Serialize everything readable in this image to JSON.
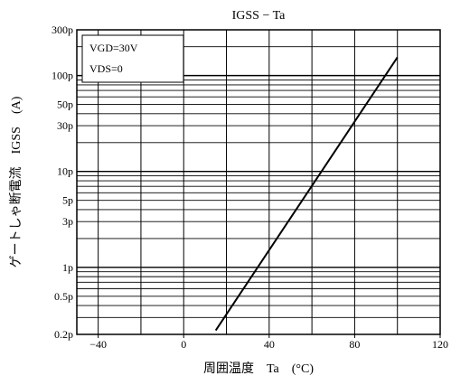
{
  "chart_data": {
    "type": "line",
    "title": "IGSS − Ta",
    "xlabel": "周囲温度　Ta　(°C)",
    "ylabel": "ゲートしゃ断電流　IGSS　(A)",
    "xscale": "linear",
    "yscale": "log",
    "xlim": [
      -50,
      120
    ],
    "ylim": [
      2e-13,
      3e-10
    ],
    "x_ticks": [
      -40,
      0,
      40,
      80,
      120
    ],
    "x_tick_labels": [
      "−40",
      "0",
      "40",
      "80",
      "120"
    ],
    "y_ticks": [
      2e-13,
      5e-13,
      1e-12,
      3e-12,
      5e-12,
      1e-11,
      3e-11,
      5e-11,
      1e-10,
      3e-10
    ],
    "y_tick_labels": [
      "0.2p",
      "0.5p",
      "1p",
      "3p",
      "5p",
      "10p",
      "30p",
      "50p",
      "100p",
      "300p"
    ],
    "grid": true,
    "annotations": [
      "VGD=30V",
      "VDS=0"
    ],
    "series": [
      {
        "x": [
          15,
          100
        ],
        "y": [
          2.2e-13,
          1.55e-10
        ]
      }
    ]
  }
}
